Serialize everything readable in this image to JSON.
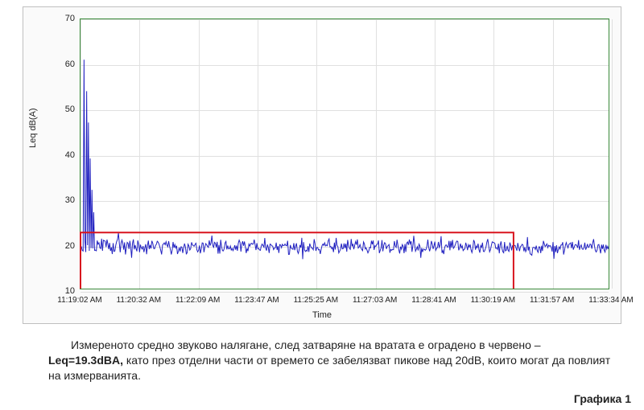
{
  "chart": {
    "type": "line",
    "ylabel": "Leq dB(A)",
    "xlabel": "Time",
    "ylim": [
      10,
      70
    ],
    "yticks": [
      10,
      20,
      30,
      40,
      50,
      60,
      70
    ],
    "xticks": [
      "11:19:02 AM",
      "11:20:32 AM",
      "11:22:09 AM",
      "11:23:47 AM",
      "11:25:25 AM",
      "11:27:03 AM",
      "11:28:41 AM",
      "11:30:19 AM",
      "11:31:57 AM",
      "11:33:34 AM"
    ],
    "xlim_n": 600,
    "background_color": "#ffffff",
    "frame_background": "#fafafa",
    "grid_color": "#e0e0e0",
    "axis_border_color": "#3a8a3a",
    "ytick_fontsize": 11,
    "xtick_fontsize": 10,
    "label_fontsize": 11,
    "series": {
      "signal": {
        "color": "#2020c0",
        "width": 1,
        "baseline": 19.3,
        "noise_amp": 2.4,
        "spikes": [
          {
            "x": 4,
            "y": 61
          },
          {
            "x": 7,
            "y": 54
          },
          {
            "x": 9,
            "y": 47
          },
          {
            "x": 11,
            "y": 39
          },
          {
            "x": 13,
            "y": 32
          },
          {
            "x": 15,
            "y": 27
          }
        ]
      },
      "red_box": {
        "color": "#d8141e",
        "width": 2,
        "y": 22.5,
        "x_start_frac": 0.0,
        "x_end_frac": 0.82
      }
    }
  },
  "caption": {
    "pre": "Измереното средно звуково налягане, след затваряне на вратата е оградено в червено – ",
    "bold": "Leq=19.3dBA,",
    "post": " като през отделни части от времето се забелязват пикове над 20dB, които могат да повлият на измерванията."
  },
  "figure_label": "Графика 1"
}
